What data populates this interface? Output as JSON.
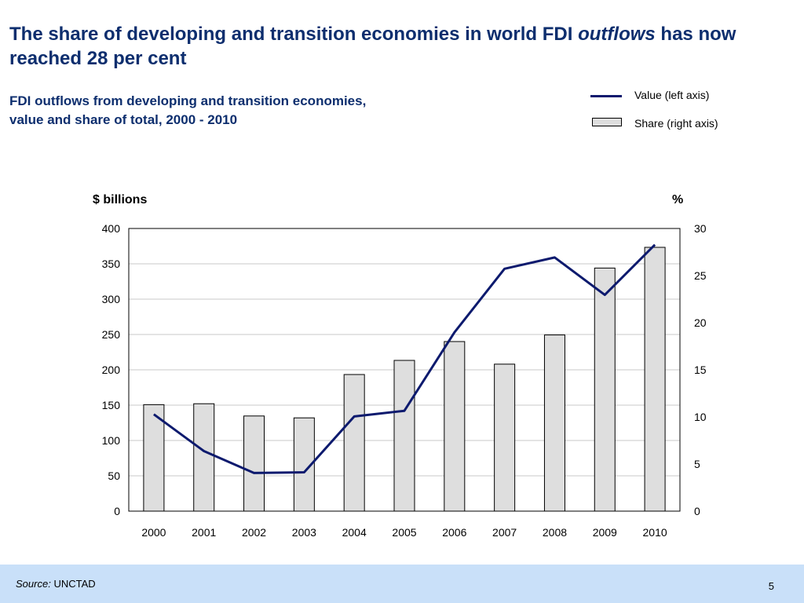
{
  "slide": {
    "title_part1": "The share of developing and transition economies in world FDI ",
    "title_emph": "outflows",
    "title_part2": " has now reached 28 per cent",
    "subtitle_line1": "FDI outflows from developing and transition economies,",
    "subtitle_line2": "value and share of total, 2000 - 2010",
    "source_label": "Source:",
    "source_value": "UNCTAD",
    "page_number": "5"
  },
  "chart_data": {
    "type": "bar",
    "categories": [
      "2000",
      "2001",
      "2002",
      "2003",
      "2004",
      "2005",
      "2006",
      "2007",
      "2008",
      "2009",
      "2010"
    ],
    "series": [
      {
        "name": "Share (right axis)",
        "type": "bar",
        "axis": "right",
        "color": "#dedede",
        "values": [
          11.3,
          11.4,
          10.1,
          9.9,
          14.5,
          16.0,
          18.0,
          15.6,
          18.7,
          25.8,
          28.0
        ]
      },
      {
        "name": "Value (left axis)",
        "type": "line",
        "axis": "left",
        "color": "#0d1a6e",
        "values": [
          137,
          85,
          54,
          55,
          134,
          142,
          253,
          343,
          359,
          306,
          377
        ]
      }
    ],
    "ylabel_left": "$ billions",
    "ylabel_right": "%",
    "ylim_left": [
      0,
      400
    ],
    "ylim_right": [
      0,
      30
    ],
    "yticks_left": [
      "0",
      "50",
      "100",
      "150",
      "200",
      "250",
      "300",
      "350",
      "400"
    ],
    "yticks_right": [
      "0",
      "5",
      "10",
      "15",
      "20",
      "25",
      "30"
    ],
    "grid": true,
    "legend_position": "top-right"
  }
}
